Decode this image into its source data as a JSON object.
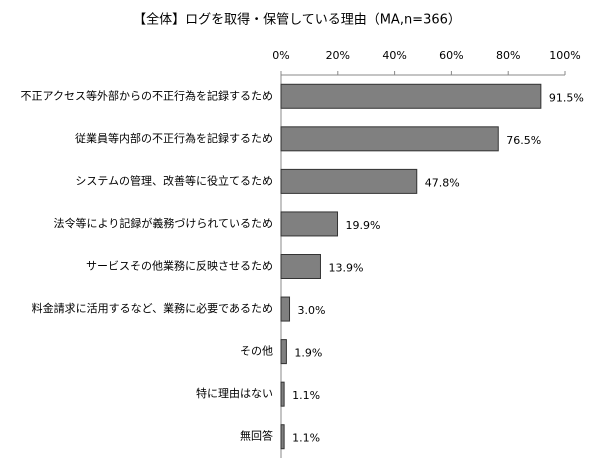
{
  "chart_data": {
    "type": "bar",
    "orientation": "horizontal",
    "title": "【全体】ログを取得・保管している理由（MA,n=366）",
    "categories": [
      "不正アクセス等外部からの不正行為を記録するため",
      "従業員等内部の不正行為を記録するため",
      "システムの管理、改善等に役立てるため",
      "法令等により記録が義務づけられているため",
      "サービスその他業務に反映させるため",
      "料金請求に活用するなど、業務に必要であるため",
      "その他",
      "特に理由はない",
      "無回答"
    ],
    "values": [
      91.5,
      76.5,
      47.8,
      19.9,
      13.9,
      3.0,
      1.9,
      1.1,
      1.1
    ],
    "value_labels": [
      "91.5%",
      "76.5%",
      "47.8%",
      "19.9%",
      "13.9%",
      "3.0%",
      "1.9%",
      "1.1%",
      "1.1%"
    ],
    "color": "#808080",
    "xlim": [
      0,
      100
    ],
    "xticks": [
      {
        "value": 0,
        "label": "0%"
      },
      {
        "value": 20,
        "label": "20%"
      },
      {
        "value": 40,
        "label": "40%"
      },
      {
        "value": 60,
        "label": "60%"
      },
      {
        "value": 80,
        "label": "80%"
      },
      {
        "value": 100,
        "label": "100%"
      }
    ],
    "grid": false
  }
}
